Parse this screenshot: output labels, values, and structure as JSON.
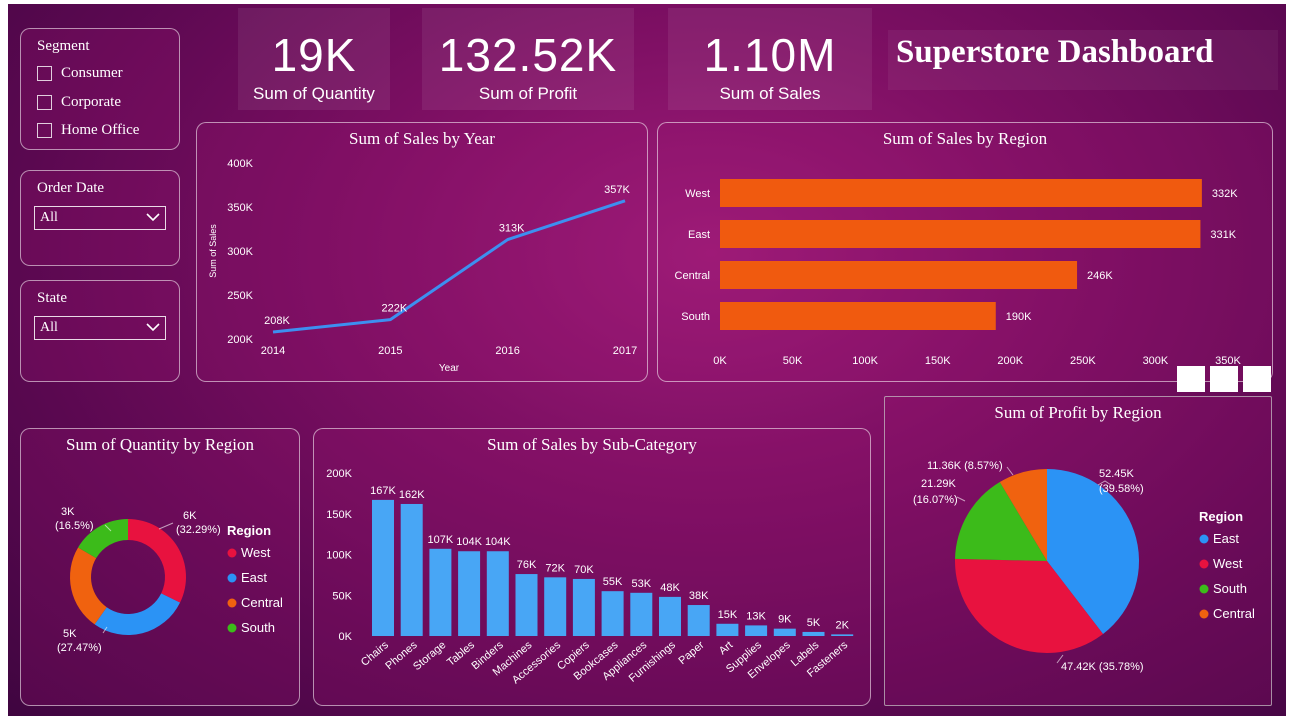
{
  "title": "Superstore Dashboard",
  "kpis": [
    {
      "value": "19K",
      "label": "Sum of Quantity"
    },
    {
      "value": "132.52K",
      "label": "Sum of Profit"
    },
    {
      "value": "1.10M",
      "label": "Sum of Sales"
    }
  ],
  "slicers": {
    "segment": {
      "title": "Segment",
      "options": [
        "Consumer",
        "Corporate",
        "Home Office"
      ]
    },
    "order_date": {
      "title": "Order Date",
      "value": "All"
    },
    "state": {
      "title": "State",
      "value": "All"
    }
  },
  "colors": {
    "line": "#3d8ff0",
    "bar_orange": "#f05a0f",
    "bar_blue": "#48a6f5",
    "west": "#e8123f",
    "east": "#2b93f5",
    "central": "#f0620f",
    "south": "#3cbb1a"
  },
  "chart_data": [
    {
      "id": "sales_by_year",
      "type": "line",
      "title": "Sum of Sales by Year",
      "xlabel": "Year",
      "ylabel": "Sum of Sales",
      "x": [
        "2014",
        "2015",
        "2016",
        "2017"
      ],
      "values": [
        208,
        222,
        313,
        357
      ],
      "labels": [
        "208K",
        "222K",
        "313K",
        "357K"
      ],
      "yticks": [
        "200K",
        "250K",
        "300K",
        "350K",
        "400K"
      ],
      "ylim": [
        200,
        400
      ]
    },
    {
      "id": "sales_by_region",
      "type": "bar",
      "orientation": "horizontal",
      "title": "Sum of Sales by Region",
      "categories": [
        "West",
        "East",
        "Central",
        "South"
      ],
      "values": [
        332,
        331,
        246,
        190
      ],
      "labels": [
        "332K",
        "331K",
        "246K",
        "190K"
      ],
      "xticks": [
        "0K",
        "50K",
        "100K",
        "150K",
        "200K",
        "250K",
        "300K",
        "350K"
      ],
      "xlim": [
        0,
        350
      ]
    },
    {
      "id": "quantity_by_region",
      "type": "pie",
      "style": "donut",
      "title": "Sum of Quantity by Region",
      "legend_title": "Region",
      "categories": [
        "West",
        "East",
        "Central",
        "South"
      ],
      "values": [
        32.29,
        27.47,
        23.74,
        16.5
      ],
      "labels": [
        {
          "line1": "6K",
          "line2": "(32.29%)"
        },
        {
          "line1": "5K",
          "line2": "(27.47%)"
        },
        {
          "line1": "",
          "line2": ""
        },
        {
          "line1": "3K",
          "line2": "(16.5%)"
        }
      ]
    },
    {
      "id": "sales_by_subcategory",
      "type": "bar",
      "title": "Sum of Sales by Sub-Category",
      "categories": [
        "Chairs",
        "Phones",
        "Storage",
        "Tables",
        "Binders",
        "Machines",
        "Accessories",
        "Copiers",
        "Bookcases",
        "Appliances",
        "Furnishings",
        "Paper",
        "Art",
        "Supplies",
        "Envelopes",
        "Labels",
        "Fasteners"
      ],
      "values": [
        167,
        162,
        107,
        104,
        104,
        76,
        72,
        70,
        55,
        53,
        48,
        38,
        15,
        13,
        9,
        5,
        2
      ],
      "labels": [
        "167K",
        "162K",
        "107K",
        "104K",
        "104K",
        "76K",
        "72K",
        "70K",
        "55K",
        "53K",
        "48K",
        "38K",
        "15K",
        "13K",
        "9K",
        "5K",
        "2K"
      ],
      "yticks": [
        "0K",
        "50K",
        "100K",
        "150K",
        "200K"
      ],
      "ylim": [
        0,
        200
      ]
    },
    {
      "id": "profit_by_region",
      "type": "pie",
      "title": "Sum of Profit by Region",
      "legend_title": "Region",
      "categories": [
        "East",
        "West",
        "South",
        "Central"
      ],
      "values": [
        39.58,
        35.78,
        16.07,
        8.57
      ],
      "labels": [
        {
          "line1": "52.45K",
          "line2": "(39.58%)"
        },
        {
          "line1": "47.42K (35.78%)",
          "line2": ""
        },
        {
          "line1": "21.29K",
          "line2": "(16.07%)"
        },
        {
          "line1": "11.36K (8.57%)",
          "line2": ""
        }
      ]
    }
  ]
}
